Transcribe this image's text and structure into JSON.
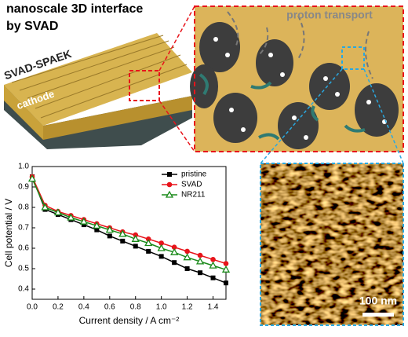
{
  "figure": {
    "title_lines": [
      "nanoscale 3D interface",
      "by SVAD"
    ],
    "membrane_label": "SVAD-SPAEK",
    "cathode_label": "cathode",
    "zoom_label": "proton transport",
    "scale_bar": "100 nm"
  },
  "chart_data": {
    "type": "line",
    "x_label": "Current density / A cm⁻²",
    "y_label": "Cell potential / V",
    "x": [
      0,
      0.1,
      0.2,
      0.3,
      0.4,
      0.5,
      0.6,
      0.7,
      0.8,
      0.9,
      1.0,
      1.1,
      1.2,
      1.3,
      1.4,
      1.5
    ],
    "series": [
      {
        "name": "pristine",
        "color": "#000000",
        "marker": "square",
        "values": [
          0.95,
          0.79,
          0.765,
          0.74,
          0.715,
          0.69,
          0.66,
          0.635,
          0.61,
          0.585,
          0.56,
          0.53,
          0.5,
          0.48,
          0.455,
          0.43
        ]
      },
      {
        "name": "SVAD",
        "color": "#e8141b",
        "marker": "circle",
        "values": [
          0.95,
          0.81,
          0.78,
          0.76,
          0.74,
          0.72,
          0.7,
          0.68,
          0.665,
          0.645,
          0.625,
          0.605,
          0.585,
          0.565,
          0.545,
          0.525
        ]
      },
      {
        "name": "NR211",
        "color": "#1a8a1a",
        "marker": "triangle",
        "values": [
          0.94,
          0.8,
          0.775,
          0.75,
          0.73,
          0.71,
          0.69,
          0.67,
          0.645,
          0.625,
          0.6,
          0.58,
          0.555,
          0.535,
          0.515,
          0.495
        ]
      }
    ],
    "xlim": [
      0,
      1.5
    ],
    "ylim": [
      0.35,
      1.0
    ],
    "xticks": [
      {
        "value": 0,
        "label": "0.0"
      },
      0.2,
      0.4,
      0.6,
      0.8,
      {
        "value": 1,
        "label": "1.0"
      },
      1.2,
      1.4
    ],
    "yticks": [
      0.4,
      0.5,
      0.6,
      0.7,
      0.8,
      0.9,
      {
        "value": 1,
        "label": "1.0"
      }
    ],
    "legend": "upper right",
    "grid": false
  }
}
